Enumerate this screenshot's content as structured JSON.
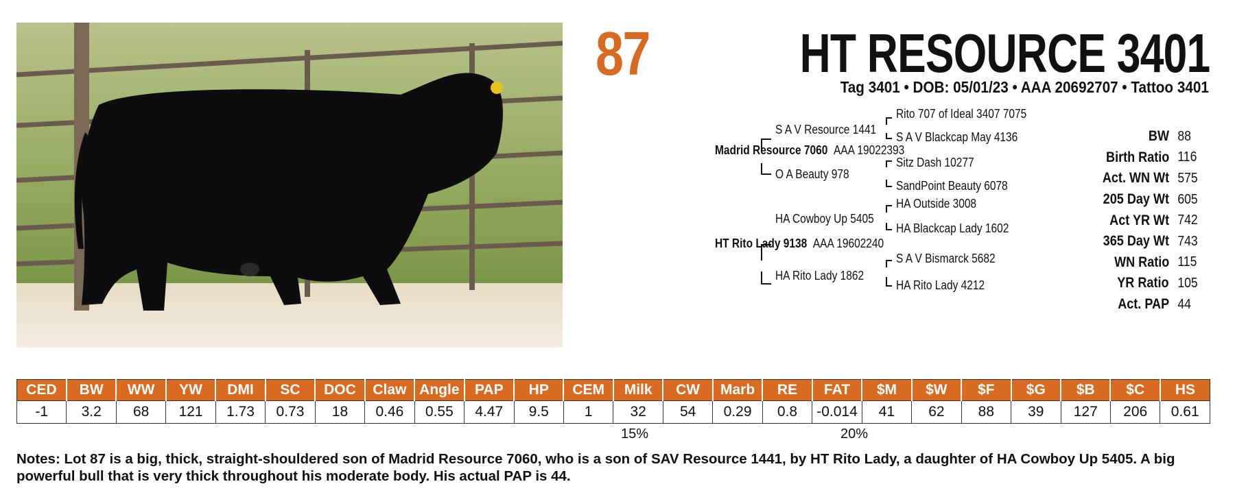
{
  "lot_number": "87",
  "title": "HT RESOURCE 3401",
  "meta": "Tag 3401 • DOB: 05/01/23 • AAA 20692707 • Tattoo 3401",
  "pedigree": {
    "sire": "Madrid Resource 7060",
    "sire_reg": "AAA 19022393",
    "sire_sire": "S A V Resource 1441",
    "sire_sire_sire": "Rito 707 of Ideal 3407 7075",
    "sire_sire_dam": "S A V Blackcap May 4136",
    "sire_dam": "O A Beauty 978",
    "sire_dam_sire": "Sitz Dash 10277",
    "sire_dam_dam": "SandPoint Beauty 6078",
    "dam": "HT Rito Lady 9138",
    "dam_reg": "AAA 19602240",
    "dam_sire": "HA Cowboy Up 5405",
    "dam_sire_sire": "HA Outside 3008",
    "dam_sire_dam": "HA Blackcap Lady 1602",
    "dam_dam": "HA Rito Lady 1862",
    "dam_dam_sire": "S A V Bismarck 5682",
    "dam_dam_dam": "HA Rito Lady 4212"
  },
  "stats": [
    {
      "label": "BW",
      "value": "88"
    },
    {
      "label": "Birth Ratio",
      "value": "116"
    },
    {
      "label": "Act. WN Wt",
      "value": "575"
    },
    {
      "label": "205 Day Wt",
      "value": "605"
    },
    {
      "label": "Act YR Wt",
      "value": "742"
    },
    {
      "label": "365 Day Wt",
      "value": "743"
    },
    {
      "label": "WN Ratio",
      "value": "115"
    },
    {
      "label": "YR Ratio",
      "value": "105"
    },
    {
      "label": "Act. PAP",
      "value": "44"
    }
  ],
  "epd": {
    "headers": [
      "CED",
      "BW",
      "WW",
      "YW",
      "DMI",
      "SC",
      "DOC",
      "Claw",
      "Angle",
      "PAP",
      "HP",
      "CEM",
      "Milk",
      "CW",
      "Marb",
      "RE",
      "FAT",
      "$M",
      "$W",
      "$F",
      "$G",
      "$B",
      "$C",
      "HS"
    ],
    "values": [
      "-1",
      "3.2",
      "68",
      "121",
      "1.73",
      "0.73",
      "18",
      "0.46",
      "0.55",
      "4.47",
      "9.5",
      "1",
      "32",
      "54",
      "0.29",
      "0.8",
      "-0.014",
      "41",
      "62",
      "88",
      "39",
      "127",
      "206",
      "0.61"
    ],
    "percentiles": {
      "Milk": "15%",
      "FAT": "20%"
    }
  },
  "notes": "Notes: Lot 87 is a big, thick, straight-shouldered son of Madrid Resource 7060, who is a son of SAV Resource 1441, by HT Rito Lady, a daughter of HA Cowboy Up 5405. A big powerful bull that is very thick throughout his moderate body.  His actual PAP is 44.",
  "colors": {
    "accent": "#d96a22",
    "text": "#111111"
  }
}
